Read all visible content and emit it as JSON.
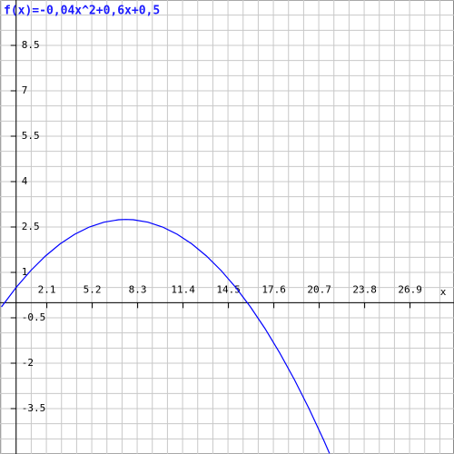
{
  "chart_data": {
    "type": "line",
    "title": "f(x)=-0,04x^2+0,6x+0,5",
    "x_label": "x",
    "x": [
      -1,
      0,
      1,
      2,
      3,
      4,
      5,
      6,
      7,
      7.5,
      8,
      9,
      10,
      11,
      12,
      13,
      14,
      15,
      16,
      17,
      18,
      19,
      20,
      21,
      21.4
    ],
    "values": [
      -0.14,
      0.5,
      1.06,
      1.54,
      1.94,
      2.26,
      2.5,
      2.66,
      2.74,
      2.75,
      2.74,
      2.66,
      2.5,
      2.26,
      1.94,
      1.54,
      1.06,
      0.5,
      -0.14,
      -0.86,
      -1.66,
      -2.54,
      -3.5,
      -4.54,
      -4.98
    ],
    "color": "#0000ff",
    "xlim": [
      -1.1,
      29.9
    ],
    "ylim": [
      -5,
      10
    ],
    "xticks": [
      2.1,
      5.2,
      8.3,
      11.4,
      14.5,
      17.6,
      20.7,
      23.8,
      26.9
    ],
    "yticks": [
      -3.5,
      -2,
      -0.5,
      1,
      2.5,
      4,
      5.5,
      7,
      8.5
    ],
    "grid": true
  }
}
